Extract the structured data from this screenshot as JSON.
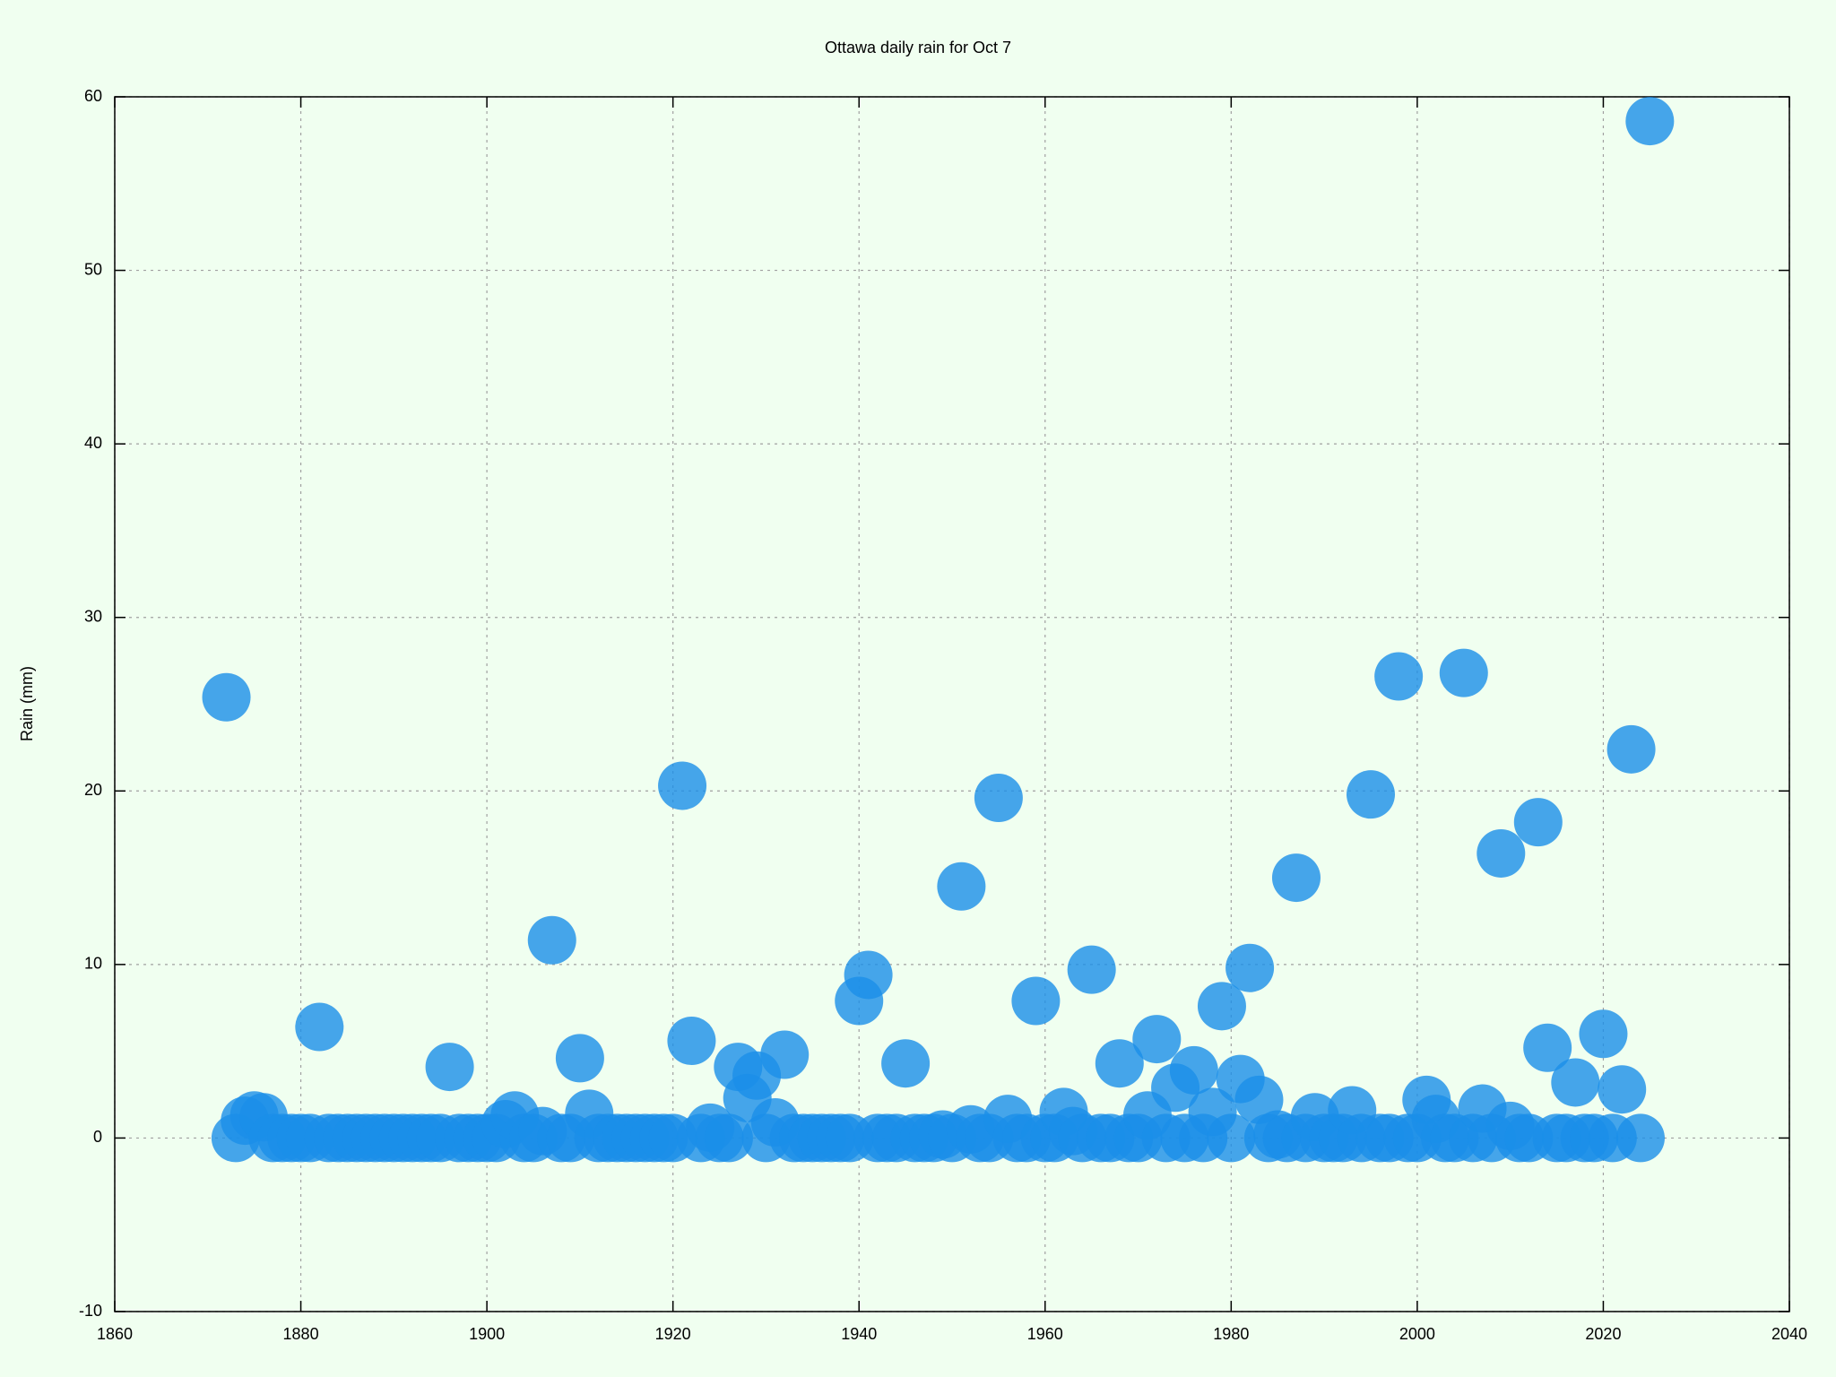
{
  "chart_data": {
    "type": "scatter",
    "title": "Ottawa daily rain for Oct 7",
    "y_label": "Rain (mm)",
    "x": [
      1872,
      1873,
      1874,
      1875,
      1876,
      1877,
      1878,
      1879,
      1880,
      1881,
      1882,
      1883,
      1884,
      1885,
      1886,
      1887,
      1888,
      1889,
      1890,
      1891,
      1892,
      1893,
      1894,
      1895,
      1896,
      1897,
      1898,
      1899,
      1900,
      1901,
      1902,
      1903,
      1904,
      1905,
      1906,
      1907,
      1908,
      1909,
      1910,
      1911,
      1912,
      1913,
      1914,
      1915,
      1916,
      1917,
      1918,
      1919,
      1920,
      1921,
      1922,
      1923,
      1924,
      1925,
      1926,
      1927,
      1928,
      1929,
      1930,
      1931,
      1932,
      1933,
      1934,
      1935,
      1936,
      1937,
      1938,
      1939,
      1940,
      1941,
      1942,
      1943,
      1944,
      1945,
      1946,
      1947,
      1948,
      1949,
      1950,
      1951,
      1952,
      1953,
      1954,
      1955,
      1956,
      1957,
      1958,
      1959,
      1960,
      1961,
      1962,
      1963,
      1964,
      1965,
      1966,
      1967,
      1968,
      1969,
      1970,
      1971,
      1972,
      1973,
      1974,
      1975,
      1976,
      1977,
      1978,
      1979,
      1980,
      1981,
      1982,
      1983,
      1984,
      1985,
      1986,
      1987,
      1988,
      1989,
      1990,
      1991,
      1992,
      1993,
      1994,
      1995,
      1996,
      1997,
      1998,
      1999,
      2000,
      2001,
      2002,
      2003,
      2004,
      2005,
      2006,
      2007,
      2008,
      2009,
      2010,
      2011,
      2012,
      2013,
      2014,
      2015,
      2016,
      2017,
      2018,
      2019,
      2020,
      2021,
      2022,
      2023,
      2024,
      2025
    ],
    "values": [
      25.4,
      0,
      1.0,
      1.3,
      1.2,
      0,
      0,
      0,
      0,
      0,
      6.4,
      0,
      0,
      0,
      0,
      0,
      0,
      0,
      0,
      0,
      0,
      0,
      0,
      0,
      4.1,
      0,
      0,
      0,
      0,
      0,
      0.8,
      1.3,
      0,
      0,
      0.4,
      11.4,
      0,
      0,
      4.6,
      1.4,
      0,
      0,
      0,
      0,
      0,
      0,
      0,
      0,
      0,
      20.3,
      5.6,
      0,
      0.6,
      0,
      0,
      4.1,
      2.3,
      3.6,
      0,
      0.9,
      4.8,
      0,
      0,
      0,
      0,
      0,
      0,
      0,
      7.9,
      9.4,
      0,
      0,
      0,
      4.3,
      0,
      0,
      0,
      0.2,
      0,
      14.5,
      0.5,
      0,
      0,
      19.6,
      1.1,
      0,
      0,
      7.9,
      0,
      0,
      1.5,
      0.4,
      0,
      9.7,
      0,
      0,
      4.3,
      0,
      0,
      1.3,
      5.7,
      0,
      2.9,
      0,
      3.9,
      0,
      1.5,
      7.6,
      0,
      3.4,
      9.8,
      2.2,
      0,
      0.2,
      0,
      15.0,
      0,
      1.2,
      0,
      0,
      0,
      1.6,
      0,
      19.8,
      0,
      0,
      26.6,
      0,
      0,
      2.2,
      1.1,
      0,
      0,
      26.8,
      0,
      1.7,
      0,
      16.4,
      0.7,
      0,
      0,
      18.2,
      5.2,
      0,
      0,
      3.2,
      0,
      0,
      6.0,
      0,
      2.8,
      22.4,
      0,
      58.6
    ],
    "color": "#1a8fe8",
    "xlim": [
      1860,
      2040
    ],
    "xticks": [
      1860,
      1880,
      1900,
      1920,
      1940,
      1960,
      1980,
      2000,
      2020,
      2040
    ],
    "ylim": [
      -10,
      60
    ],
    "yticks": [
      -10,
      0,
      10,
      20,
      30,
      40,
      50,
      60
    ],
    "grid": true
  }
}
